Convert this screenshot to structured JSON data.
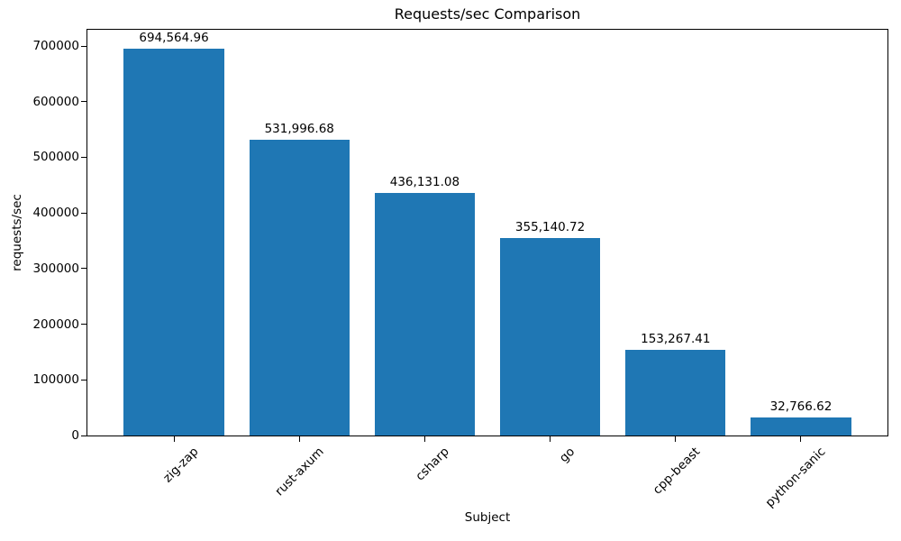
{
  "chart_data": {
    "type": "bar",
    "title": "Requests/sec Comparison",
    "xlabel": "Subject",
    "ylabel": "requests/sec",
    "categories": [
      "zig-zap",
      "rust-axum",
      "csharp",
      "go",
      "cpp-beast",
      "python-sanic"
    ],
    "values": [
      694564.96,
      531996.68,
      436131.08,
      355140.72,
      153267.41,
      32766.62
    ],
    "value_labels": [
      "694,564.96",
      "531,996.68",
      "436,131.08",
      "355,140.72",
      "153,267.41",
      "32,766.62"
    ],
    "yticks": [
      0,
      100000,
      200000,
      300000,
      400000,
      500000,
      600000,
      700000
    ],
    "ytick_labels": [
      "0",
      "100000",
      "200000",
      "300000",
      "400000",
      "500000",
      "600000",
      "700000"
    ],
    "ylim": [
      0,
      729293
    ],
    "grid": false,
    "legend": "none",
    "bar_color": "#1f77b4",
    "frame": "full-box"
  }
}
